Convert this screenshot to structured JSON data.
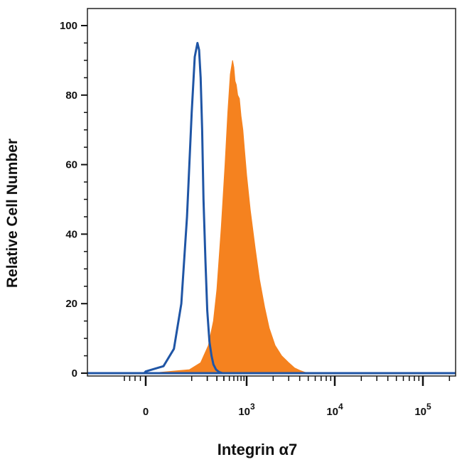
{
  "chart_data": {
    "type": "area",
    "title": "",
    "xlabel": "Integrin α7",
    "ylabel": "Relative Cell Number",
    "x_scale": "biexponential",
    "x_tick_labels": [
      {
        "value": 0,
        "label": "0",
        "exp": ""
      },
      {
        "value": 1000,
        "label": "10",
        "exp": "3"
      },
      {
        "value": 10000,
        "label": "10",
        "exp": "4"
      },
      {
        "value": 100000,
        "label": "10",
        "exp": "5"
      }
    ],
    "y_ticks": [
      0,
      20,
      40,
      60,
      80,
      100
    ],
    "ylim": [
      0,
      100
    ],
    "xlim": [
      -500,
      300000
    ],
    "grid": false,
    "series": [
      {
        "style": "filled",
        "color": "#f5821f",
        "x": [
          5,
          90,
          150,
          210,
          260,
          300,
          360,
          420,
          470,
          520,
          570,
          600,
          630,
          660,
          700,
          750,
          800,
          860,
          920,
          1000,
          1100,
          1250,
          1400,
          1600,
          1800,
          2100,
          2500,
          3000,
          3500,
          4000,
          4500,
          5000
        ],
        "values": [
          0,
          1,
          3,
          8,
          15,
          24,
          42,
          60,
          75,
          86,
          90,
          88,
          84,
          83,
          80,
          79,
          74,
          70,
          64,
          57,
          47,
          36,
          27,
          19,
          13,
          8,
          5,
          3,
          1.5,
          0.8,
          0.3,
          0
        ]
      },
      {
        "style": "line",
        "color": "#1f55a5",
        "x": [
          -20,
          0,
          20,
          40,
          60,
          80,
          100,
          115,
          130,
          140,
          150,
          160,
          170,
          185,
          200,
          220,
          240,
          260,
          290,
          330,
          380
        ],
        "values": [
          0,
          0.5,
          2,
          7,
          20,
          45,
          75,
          91,
          95,
          93,
          85,
          70,
          50,
          32,
          18,
          9,
          5,
          2.5,
          1,
          0.3,
          0
        ]
      }
    ]
  }
}
